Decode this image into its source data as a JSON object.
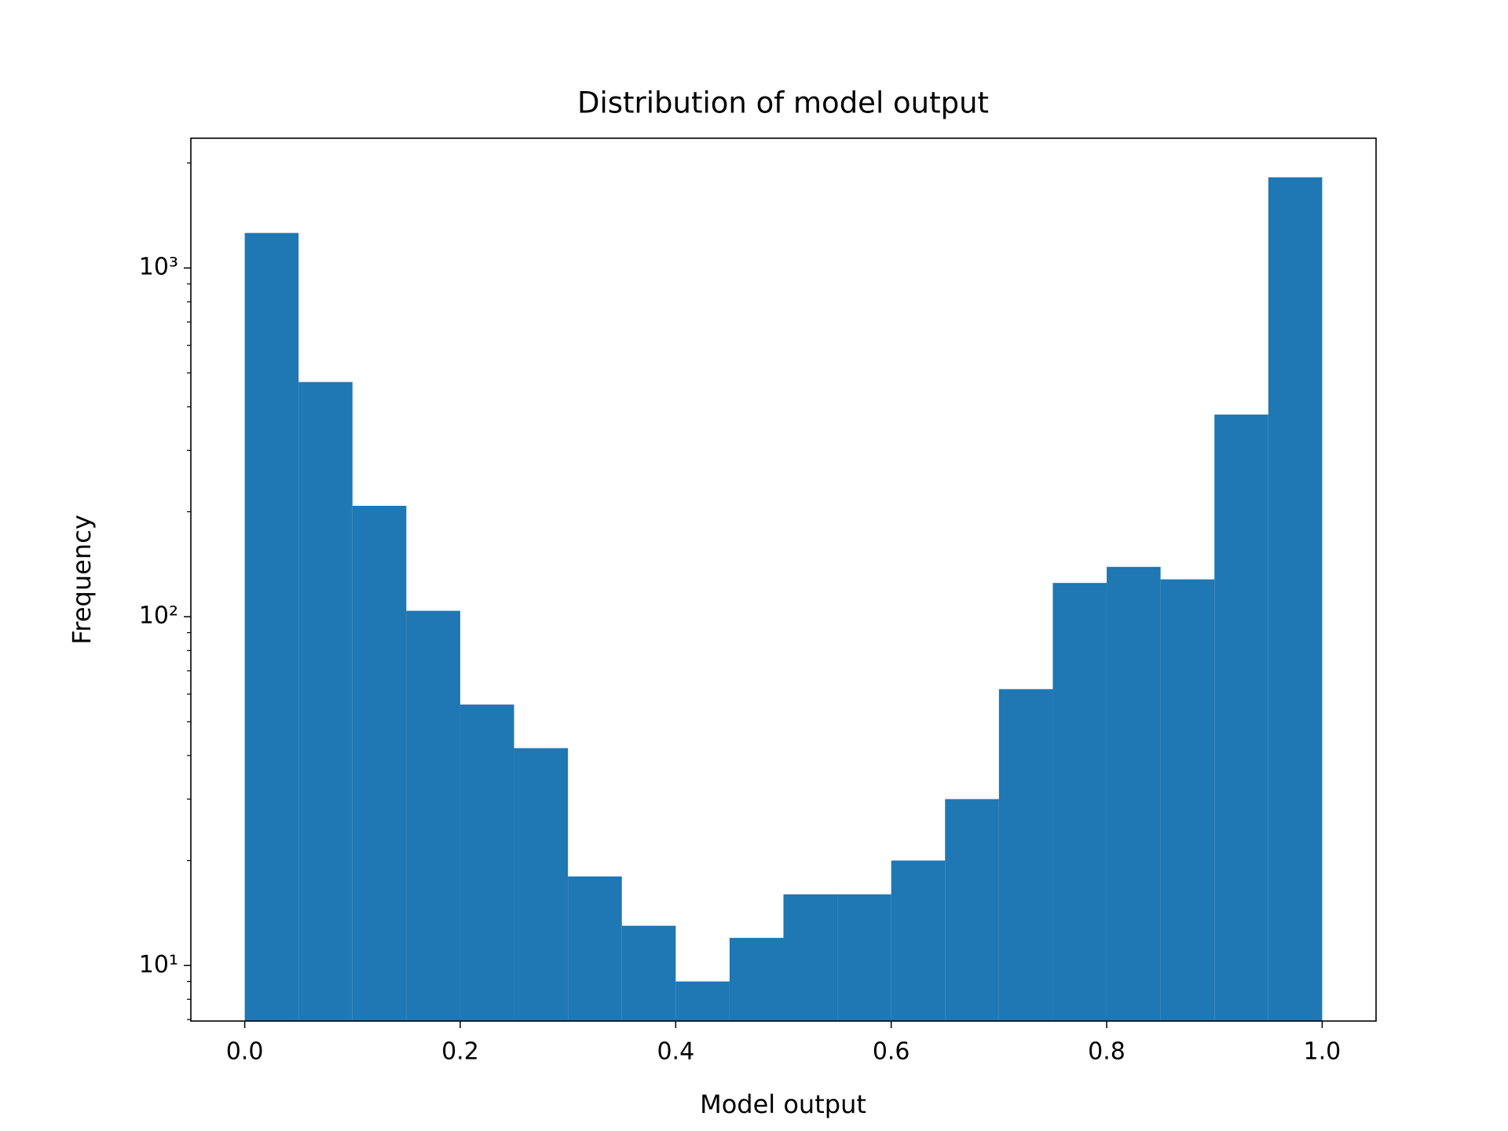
{
  "chart_data": {
    "type": "histogram",
    "title": "Distribution of model output",
    "xlabel": "Model output",
    "ylabel": "Frequency",
    "bins": [
      0.0,
      0.05,
      0.1,
      0.15,
      0.2,
      0.25,
      0.3,
      0.35,
      0.4,
      0.45,
      0.5,
      0.55,
      0.6,
      0.65,
      0.7,
      0.75,
      0.8,
      0.85,
      0.9,
      0.95,
      1.0
    ],
    "values": [
      1260,
      471,
      208,
      104,
      56,
      42,
      18,
      13,
      9,
      12,
      16,
      16,
      20,
      30,
      62,
      125,
      139,
      128,
      380,
      1820
    ],
    "color": "#1f77b4",
    "xlim": [
      -0.05,
      1.05
    ],
    "ylim": [
      6.93,
      2355
    ],
    "ylog": true,
    "xticks": [
      {
        "value": 0,
        "label": "0.0"
      },
      0.2,
      0.4,
      0.6,
      0.8,
      {
        "value": 1,
        "label": "1.0"
      }
    ],
    "yticks": [
      {
        "value": 10,
        "label": "10¹"
      },
      {
        "value": 100,
        "label": "10²"
      },
      {
        "value": 1000,
        "label": "10³"
      }
    ],
    "yticks_minor": [
      7,
      8,
      9,
      20,
      30,
      40,
      50,
      60,
      70,
      80,
      90,
      200,
      300,
      400,
      500,
      600,
      700,
      800,
      900,
      2000
    ]
  }
}
